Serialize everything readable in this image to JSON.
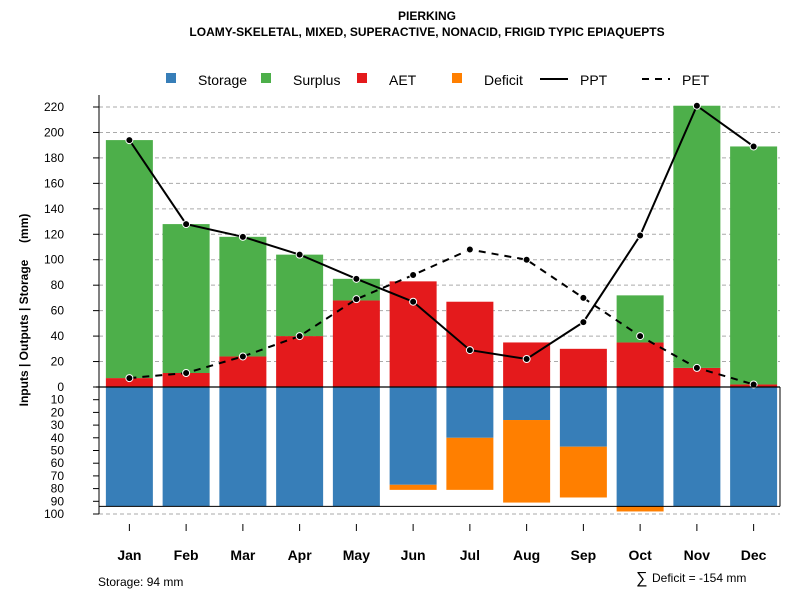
{
  "chart_data": {
    "type": "bar",
    "title": "PIERKING",
    "subtitle": "LOAMY-SKELETAL, MIXED, SUPERACTIVE, NONACID, FRIGID TYPIC EPIAQUEPTS",
    "ylabel": "Inputs | Outputs | Storage     (mm)",
    "categories": [
      "Jan",
      "Feb",
      "Mar",
      "Apr",
      "May",
      "Jun",
      "Jul",
      "Aug",
      "Sep",
      "Oct",
      "Nov",
      "Dec"
    ],
    "ylim_upper": [
      0,
      220
    ],
    "ylim_lower": [
      0,
      100
    ],
    "yticks_upper": [
      "0",
      "20",
      "40",
      "60",
      "80",
      "100",
      "120",
      "140",
      "160",
      "180",
      "200",
      "220"
    ],
    "yticks_lower": [
      "10",
      "20",
      "30",
      "40",
      "50",
      "60",
      "70",
      "80",
      "90",
      "100"
    ],
    "legend": [
      {
        "name": "Storage",
        "color": "#377eb8",
        "kind": "box"
      },
      {
        "name": "Surplus",
        "color": "#4daf4a",
        "kind": "box"
      },
      {
        "name": "AET",
        "color": "#e41a1c",
        "kind": "box"
      },
      {
        "name": "Deficit",
        "color": "#ff7f00",
        "kind": "box"
      },
      {
        "name": "PPT",
        "color": "#000000",
        "kind": "solid"
      },
      {
        "name": "PET",
        "color": "#000000",
        "kind": "dashed"
      }
    ],
    "series": [
      {
        "name": "AET",
        "values": [
          7,
          11,
          24,
          40,
          68,
          83,
          67,
          35,
          30,
          35,
          15,
          2
        ]
      },
      {
        "name": "Surplus",
        "values": [
          187,
          117,
          94,
          64,
          17,
          0,
          0,
          0,
          0,
          37,
          206,
          187
        ]
      },
      {
        "name": "Storage",
        "values": [
          94,
          94,
          94,
          94,
          94,
          77,
          40,
          26,
          47,
          94,
          94,
          94
        ]
      },
      {
        "name": "Deficit",
        "values": [
          0,
          0,
          0,
          0,
          0,
          4,
          41,
          65,
          40,
          4,
          0,
          0
        ]
      },
      {
        "name": "PPT",
        "values": [
          194,
          128,
          118,
          104,
          85,
          67,
          29,
          22,
          51,
          119,
          221,
          189
        ]
      },
      {
        "name": "PET",
        "values": [
          7,
          11,
          24,
          40,
          69,
          88,
          108,
          100,
          70,
          40,
          15,
          2
        ]
      }
    ],
    "storage_note": "Storage: 94 mm",
    "deficit_note": "Deficit = -154 mm",
    "deficit_symbol": "∑"
  }
}
